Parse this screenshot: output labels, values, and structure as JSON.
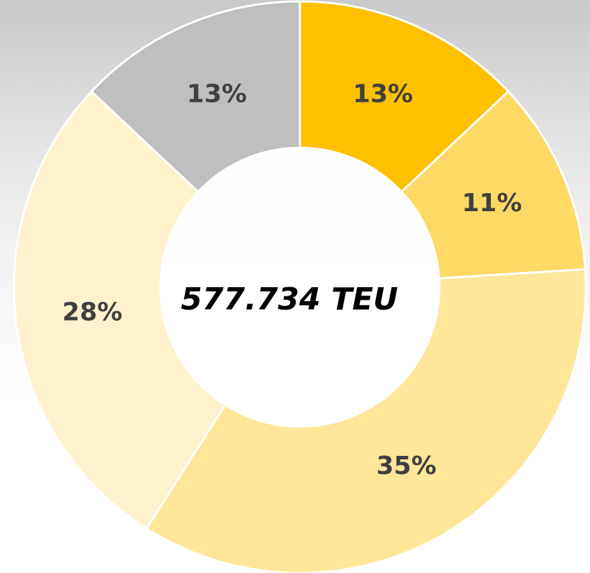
{
  "chart_data": {
    "type": "donut",
    "annotation": "577.734 TEU",
    "values": [
      13,
      11,
      35,
      28,
      13
    ],
    "value_labels": [
      "13%",
      "11%",
      "35%",
      "28%",
      "13%"
    ],
    "colors": [
      "#ffc000",
      "#ffd966",
      "#ffe699",
      "#fff2cc",
      "#bfbfbf"
    ]
  }
}
